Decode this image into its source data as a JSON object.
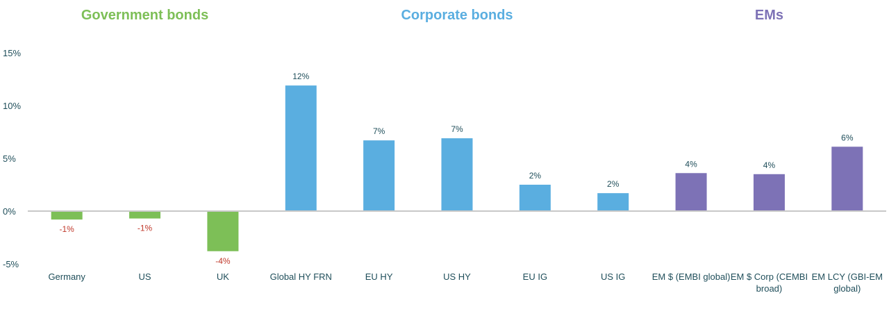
{
  "chart_data": {
    "type": "bar",
    "title": "",
    "xlabel": "",
    "ylabel": "",
    "ylim": [
      -5,
      15
    ],
    "yticks": [
      -5,
      0,
      5,
      10,
      15
    ],
    "ytick_labels": [
      "-5%",
      "0%",
      "5%",
      "10%",
      "15%"
    ],
    "grid": false,
    "groups": [
      {
        "name": "Government bonds",
        "color": "#7dbf57"
      },
      {
        "name": "Corporate bonds",
        "color": "#5aaee0"
      },
      {
        "name": "EMs",
        "color": "#7d72b6"
      }
    ],
    "categories": [
      {
        "lines": [
          "Germany"
        ],
        "group": 0
      },
      {
        "lines": [
          "US"
        ],
        "group": 0
      },
      {
        "lines": [
          "UK"
        ],
        "group": 0
      },
      {
        "lines": [
          "Global HY FRN"
        ],
        "group": 1
      },
      {
        "lines": [
          "EU HY"
        ],
        "group": 1
      },
      {
        "lines": [
          "US HY"
        ],
        "group": 1
      },
      {
        "lines": [
          "EU IG"
        ],
        "group": 1
      },
      {
        "lines": [
          "US IG"
        ],
        "group": 1
      },
      {
        "lines": [
          "EM $ (EMBI global)"
        ],
        "group": 2
      },
      {
        "lines": [
          "EM $ Corp (CEMBI",
          "broad)"
        ],
        "group": 2
      },
      {
        "lines": [
          "EM LCY (GBI-EM",
          "global)"
        ],
        "group": 2
      }
    ],
    "values": [
      -0.8,
      -0.7,
      -3.8,
      11.9,
      6.7,
      6.9,
      2.5,
      1.7,
      3.6,
      3.5,
      6.1
    ],
    "data_labels": [
      "-1%",
      "-1%",
      "-4%",
      "12%",
      "7%",
      "7%",
      "2%",
      "2%",
      "4%",
      "4%",
      "6%"
    ],
    "colors": {
      "positive_label": "#1f4e5a",
      "negative_label": "#c0392b",
      "axis": "#c8c8c8",
      "tick_text": "#1f4e5a"
    }
  }
}
